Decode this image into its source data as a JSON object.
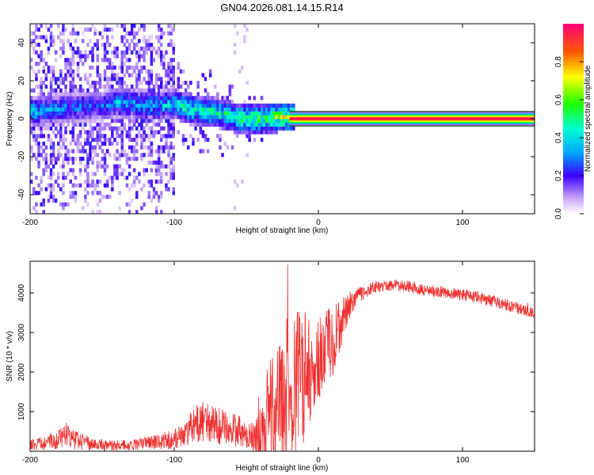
{
  "figure": {
    "title": "GN04.2026.081.14.15.R14"
  },
  "chart_data": [
    {
      "id": "spectrogram",
      "type": "heatmap",
      "title": "GN04.2026.081.14.15.R14",
      "xlabel": "Height of straight line (km)",
      "ylabel": "Frequency (Hz)",
      "xlim": [
        -200,
        150
      ],
      "ylim": [
        -50,
        50
      ],
      "xticks": [
        -200,
        -100,
        0,
        100
      ],
      "yticks": [
        -40,
        -20,
        0,
        20,
        40
      ],
      "colorbar": {
        "label": "Normalized spectral amplitude",
        "range": [
          0,
          1
        ],
        "ticks": [
          0.0,
          0.2,
          0.4,
          0.6,
          0.8
        ],
        "tick_labels": [
          "0.0",
          "0.2",
          "0.4",
          "0.6",
          "0.8"
        ]
      },
      "carrier_line": {
        "frequency_hz": 0,
        "x_start_km": -20,
        "x_end_km": 150,
        "amplitude": 0.85
      },
      "ridge": [
        {
          "x": -195,
          "f": 3,
          "a": 0.38
        },
        {
          "x": -185,
          "f": 4,
          "a": 0.35
        },
        {
          "x": -170,
          "f": 5,
          "a": 0.32
        },
        {
          "x": -150,
          "f": 6,
          "a": 0.3
        },
        {
          "x": -140,
          "f": 8,
          "a": 0.4
        },
        {
          "x": -130,
          "f": 7,
          "a": 0.35
        },
        {
          "x": -120,
          "f": 6,
          "a": 0.38
        },
        {
          "x": -110,
          "f": 6,
          "a": 0.4
        },
        {
          "x": -100,
          "f": 7,
          "a": 0.45
        },
        {
          "x": -90,
          "f": 4,
          "a": 0.5
        },
        {
          "x": -80,
          "f": 3,
          "a": 0.52
        },
        {
          "x": -70,
          "f": 2,
          "a": 0.5
        },
        {
          "x": -60,
          "f": 0,
          "a": 0.55
        },
        {
          "x": -50,
          "f": -1,
          "a": 0.6
        },
        {
          "x": -40,
          "f": -1,
          "a": 0.62
        },
        {
          "x": -30,
          "f": 0,
          "a": 0.65
        },
        {
          "x": -25,
          "f": 0,
          "a": 0.7
        }
      ]
    },
    {
      "id": "snr",
      "type": "line",
      "xlabel": "Height of straight line (km)",
      "ylabel": "SNR (10 * v/v)",
      "xlim": [
        -200,
        150
      ],
      "ylim": [
        0,
        4800
      ],
      "xticks": [
        -200,
        -100,
        0,
        100
      ],
      "yticks": [
        1000,
        2000,
        3000,
        4000
      ],
      "color": "#f03030",
      "series": [
        {
          "name": "SNR",
          "x": [
            -200,
            -190,
            -180,
            -175,
            -170,
            -160,
            -150,
            -140,
            -130,
            -120,
            -110,
            -100,
            -95,
            -90,
            -85,
            -80,
            -75,
            -70,
            -65,
            -60,
            -55,
            -50,
            -45,
            -40,
            -35,
            -30,
            -25,
            -20,
            -15,
            -10,
            -5,
            0,
            5,
            10,
            15,
            20,
            25,
            30,
            40,
            50,
            60,
            70,
            80,
            90,
            100,
            110,
            120,
            130,
            140,
            150
          ],
          "values": [
            150,
            200,
            300,
            450,
            300,
            200,
            150,
            150,
            150,
            200,
            250,
            300,
            400,
            550,
            700,
            750,
            700,
            650,
            600,
            550,
            500,
            450,
            350,
            400,
            800,
            1200,
            1500,
            1600,
            1700,
            1900,
            2100,
            2300,
            2600,
            2800,
            3200,
            3600,
            3850,
            4000,
            4150,
            4200,
            4180,
            4100,
            4050,
            4000,
            3950,
            3900,
            3800,
            3700,
            3600,
            3500
          ],
          "noise": [
            150,
            180,
            250,
            300,
            250,
            180,
            150,
            130,
            130,
            160,
            200,
            250,
            300,
            400,
            500,
            550,
            500,
            480,
            450,
            420,
            400,
            380,
            350,
            800,
            1400,
            1600,
            1700,
            1900,
            1900,
            1700,
            1300,
            1000,
            1000,
            900,
            700,
            400,
            250,
            200,
            150,
            150,
            150,
            150,
            150,
            150,
            150,
            150,
            150,
            150,
            150,
            150
          ]
        }
      ]
    }
  ]
}
